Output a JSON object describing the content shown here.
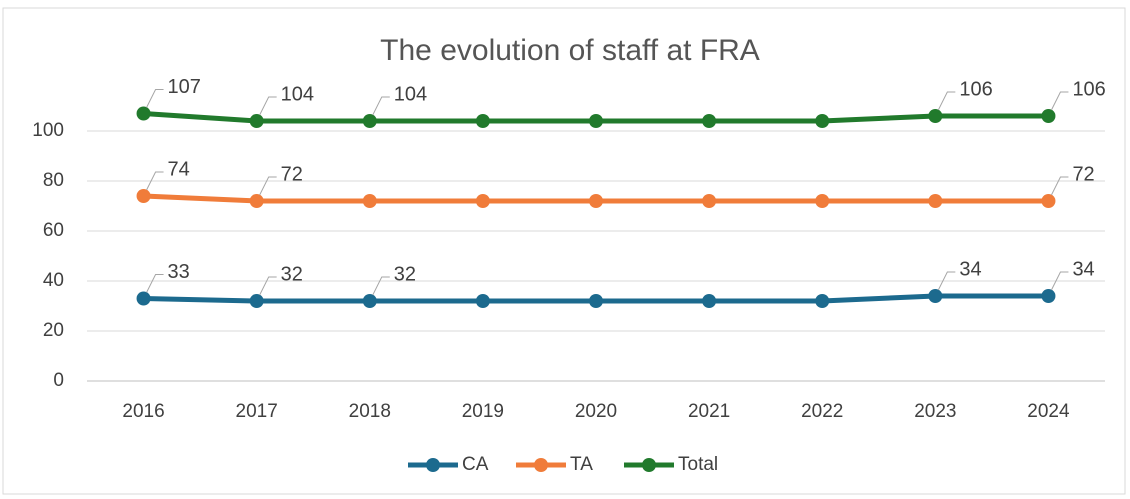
{
  "chart_data": {
    "type": "line",
    "title": "The evolution of staff at FRA",
    "categories": [
      "2016",
      "2017",
      "2018",
      "2019",
      "2020",
      "2021",
      "2022",
      "2023",
      "2024"
    ],
    "series": [
      {
        "name": "CA",
        "color": "#1c6a8e",
        "values": [
          33,
          32,
          32,
          32,
          32,
          32,
          32,
          34,
          34
        ],
        "labeled": [
          0,
          1,
          2,
          7,
          8
        ]
      },
      {
        "name": "TA",
        "color": "#f07c3a",
        "values": [
          74,
          72,
          72,
          72,
          72,
          72,
          72,
          72,
          72
        ],
        "labeled": [
          0,
          1,
          8
        ]
      },
      {
        "name": "Total",
        "color": "#217a2c",
        "values": [
          107,
          104,
          104,
          104,
          104,
          104,
          104,
          106,
          106
        ],
        "labeled": [
          0,
          1,
          2,
          7,
          8
        ]
      }
    ],
    "ylim": [
      0,
      110
    ],
    "yticks": [
      0,
      20,
      40,
      60,
      80,
      100
    ],
    "grid": true,
    "legend": "bottom"
  }
}
